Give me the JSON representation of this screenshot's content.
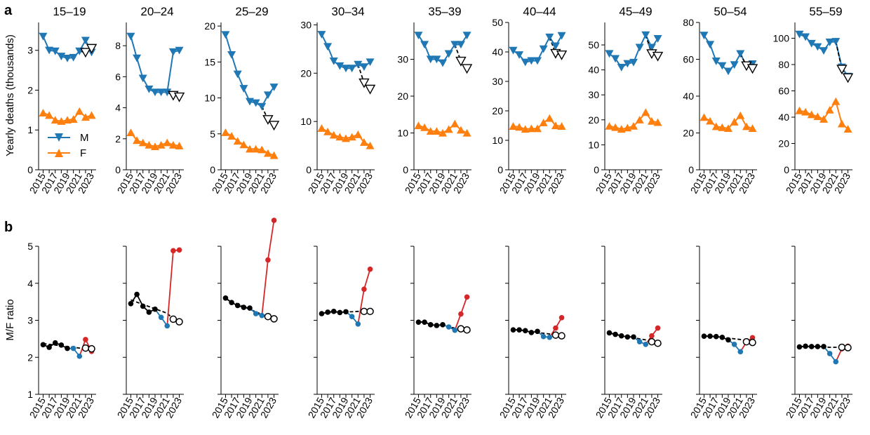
{
  "panel_labels": {
    "a": "a",
    "b": "b"
  },
  "colors": {
    "male": "#1f77b4",
    "female": "#ff7f0e",
    "ratio_black": "#000000",
    "ratio_blue": "#1f77b4",
    "ratio_red": "#d62728"
  },
  "chart_data": [
    {
      "type": "line",
      "panel": "a",
      "ylabel": "Yearly deaths (thousands)",
      "legend": {
        "placement": "lower-left-of-first-subplot",
        "entries": [
          "M",
          "F"
        ]
      },
      "age_groups": [
        "15–19",
        "20–24",
        "25–29",
        "30–34",
        "35–39",
        "40–44",
        "45–49",
        "50–54",
        "55–59"
      ],
      "x_years": [
        2015,
        2016,
        2017,
        2018,
        2019,
        2020,
        2021,
        2022,
        2023
      ],
      "x_tick_labels": [
        "2015",
        "2017",
        "2019",
        "2021",
        "2023"
      ],
      "subplots": [
        {
          "title": "15–19",
          "ylim": [
            0,
            3.7
          ],
          "yticks": [
            0,
            1,
            2,
            3
          ],
          "M": [
            3.35,
            3.0,
            2.98,
            2.85,
            2.8,
            2.82,
            2.98,
            3.25,
            2.95
          ],
          "F": [
            1.43,
            1.37,
            1.25,
            1.22,
            1.25,
            1.27,
            1.47,
            1.32,
            1.37
          ],
          "expected": [
            2.95,
            3.05
          ]
        },
        {
          "title": "20–24",
          "ylim": [
            0,
            9.5
          ],
          "yticks": [
            0,
            2,
            4,
            6,
            8
          ],
          "M": [
            8.6,
            7.2,
            5.9,
            5.2,
            5.0,
            5.0,
            5.0,
            7.6,
            7.7
          ],
          "F": [
            2.4,
            1.9,
            1.75,
            1.6,
            1.5,
            1.6,
            1.75,
            1.6,
            1.55
          ],
          "expected": [
            4.8,
            4.7
          ]
        },
        {
          "title": "25–29",
          "ylim": [
            0,
            20.5
          ],
          "yticks": [
            0,
            5,
            10,
            15,
            20
          ],
          "M": [
            18.8,
            16.0,
            13.3,
            11.3,
            9.5,
            9.3,
            8.8,
            10.4,
            11.5
          ],
          "F": [
            5.2,
            4.7,
            4.0,
            3.5,
            2.9,
            2.9,
            2.8,
            2.3,
            2.0
          ],
          "expected": [
            7.0,
            6.2
          ]
        },
        {
          "title": "30–34",
          "ylim": [
            0,
            30.5
          ],
          "yticks": [
            0,
            10,
            20,
            30
          ],
          "M": [
            28.0,
            25.5,
            22.5,
            21.5,
            21.0,
            21.0,
            21.8,
            21.3,
            22.3
          ],
          "F": [
            8.6,
            7.9,
            7.2,
            6.8,
            6.5,
            6.8,
            7.3,
            5.7,
            5.0
          ],
          "expected": [
            18.0,
            16.7
          ]
        },
        {
          "title": "35–39",
          "ylim": [
            0,
            40
          ],
          "yticks": [
            0,
            10,
            20,
            30
          ],
          "M": [
            36.5,
            34.0,
            30.0,
            30.0,
            29.0,
            31.5,
            34.0,
            34.0,
            36.5
          ],
          "F": [
            12.0,
            11.5,
            10.5,
            10.5,
            10.0,
            11.0,
            12.5,
            10.8,
            10.0
          ],
          "expected": [
            29.5,
            27.5
          ]
        },
        {
          "title": "40–44",
          "ylim": [
            0,
            50
          ],
          "yticks": [
            0,
            10,
            20,
            30,
            40,
            50
          ],
          "M": [
            40.5,
            39.0,
            36.5,
            37.0,
            37.0,
            41.0,
            45.0,
            42.0,
            45.5
          ],
          "F": [
            14.8,
            14.5,
            13.8,
            14.0,
            14.0,
            16.0,
            17.5,
            15.0,
            14.8
          ],
          "expected": [
            39.5,
            39.0
          ]
        },
        {
          "title": "45–49",
          "ylim": [
            0,
            59
          ],
          "yticks": [
            0,
            10,
            20,
            30,
            40,
            50
          ],
          "M": [
            46.5,
            44.5,
            41.0,
            42.5,
            43.0,
            49.0,
            54.0,
            49.0,
            52.5
          ],
          "F": [
            17.5,
            17.0,
            16.3,
            16.8,
            17.5,
            20.0,
            23.0,
            19.5,
            19.0
          ],
          "expected": [
            46.5,
            45.5
          ]
        },
        {
          "title": "50–54",
          "ylim": [
            0,
            80
          ],
          "yticks": [
            0,
            20,
            40,
            60,
            80
          ],
          "M": [
            73.0,
            68.0,
            59.0,
            56.5,
            53.5,
            57.0,
            63.0,
            56.5,
            57.5
          ],
          "F": [
            28.5,
            26.5,
            23.5,
            23.0,
            22.5,
            26.0,
            29.5,
            23.5,
            22.5
          ],
          "expected": [
            56.5,
            55.0
          ]
        },
        {
          "title": "55–59",
          "ylim": [
            0,
            112
          ],
          "yticks": [
            0,
            20,
            40,
            60,
            80,
            100
          ],
          "M": [
            103.0,
            101.0,
            96.0,
            93.5,
            90.5,
            97.0,
            97.5,
            78.0,
            71.0
          ],
          "F": [
            45.0,
            44.0,
            42.0,
            40.5,
            38.5,
            45.5,
            52.0,
            35.0,
            31.0
          ],
          "expected": [
            76.5,
            70.0
          ]
        }
      ]
    },
    {
      "type": "line",
      "panel": "b",
      "ylabel": "M/F ratio",
      "ylim": [
        1,
        5
      ],
      "yticks": [
        1,
        2,
        3,
        4,
        5
      ],
      "x_years": [
        2015,
        2016,
        2017,
        2018,
        2019,
        2020,
        2021,
        2022,
        2023
      ],
      "x_tick_labels": [
        "2015",
        "2017",
        "2019",
        "2021",
        "2023"
      ],
      "subplots": [
        {
          "ratio": [
            2.34,
            2.27,
            2.39,
            2.33,
            2.24,
            2.24,
            2.03,
            2.48,
            2.16
          ],
          "trend": [
            2.37,
            2.35,
            2.33,
            2.31,
            2.29,
            2.27,
            2.25,
            2.23,
            2.22
          ],
          "expected": [
            2.25,
            2.23
          ]
        },
        {
          "ratio": [
            3.45,
            3.7,
            3.38,
            3.22,
            3.3,
            3.08,
            2.85,
            4.88,
            4.9
          ],
          "trend": [
            3.55,
            3.49,
            3.43,
            3.37,
            3.31,
            3.25,
            3.19,
            3.03,
            2.96
          ],
          "expected": [
            3.03,
            2.96
          ]
        },
        {
          "ratio": [
            3.6,
            3.48,
            3.4,
            3.35,
            3.33,
            3.18,
            3.13,
            4.63,
            5.7
          ],
          "trend": [
            3.58,
            3.51,
            3.44,
            3.37,
            3.3,
            3.23,
            3.16,
            3.1,
            3.04
          ],
          "expected": [
            3.1,
            3.04
          ]
        },
        {
          "ratio": [
            3.18,
            3.22,
            3.24,
            3.21,
            3.23,
            3.1,
            2.9,
            3.84,
            4.38
          ],
          "trend": [
            3.19,
            3.2,
            3.21,
            3.22,
            3.23,
            3.23,
            3.24,
            3.24,
            3.24
          ],
          "expected": [
            3.24,
            3.24
          ]
        },
        {
          "ratio": [
            2.95,
            2.95,
            2.88,
            2.86,
            2.88,
            2.82,
            2.73,
            3.17,
            3.63
          ],
          "trend": [
            2.97,
            2.94,
            2.91,
            2.88,
            2.85,
            2.82,
            2.79,
            2.77,
            2.74
          ],
          "expected": [
            2.77,
            2.74
          ]
        },
        {
          "ratio": [
            2.74,
            2.74,
            2.72,
            2.67,
            2.7,
            2.56,
            2.54,
            2.79,
            3.07
          ],
          "trend": [
            2.75,
            2.73,
            2.71,
            2.69,
            2.67,
            2.65,
            2.63,
            2.61,
            2.58
          ],
          "expected": [
            2.6,
            2.58
          ]
        },
        {
          "ratio": [
            2.66,
            2.62,
            2.58,
            2.55,
            2.55,
            2.42,
            2.35,
            2.58,
            2.79
          ],
          "trend": [
            2.65,
            2.62,
            2.59,
            2.56,
            2.53,
            2.5,
            2.47,
            2.42,
            2.38
          ],
          "expected": [
            2.42,
            2.38
          ]
        },
        {
          "ratio": [
            2.57,
            2.57,
            2.56,
            2.54,
            2.47,
            2.35,
            2.15,
            2.41,
            2.53
          ],
          "trend": [
            2.58,
            2.57,
            2.56,
            2.54,
            2.52,
            2.5,
            2.48,
            2.42,
            2.4
          ],
          "expected": [
            2.42,
            2.4
          ]
        },
        {
          "ratio": [
            2.28,
            2.3,
            2.29,
            2.29,
            2.29,
            2.1,
            1.88,
            2.23,
            2.3
          ],
          "trend": [
            2.29,
            2.29,
            2.29,
            2.28,
            2.28,
            2.27,
            2.27,
            2.27,
            2.27
          ],
          "expected": [
            2.27,
            2.26
          ]
        }
      ]
    }
  ]
}
